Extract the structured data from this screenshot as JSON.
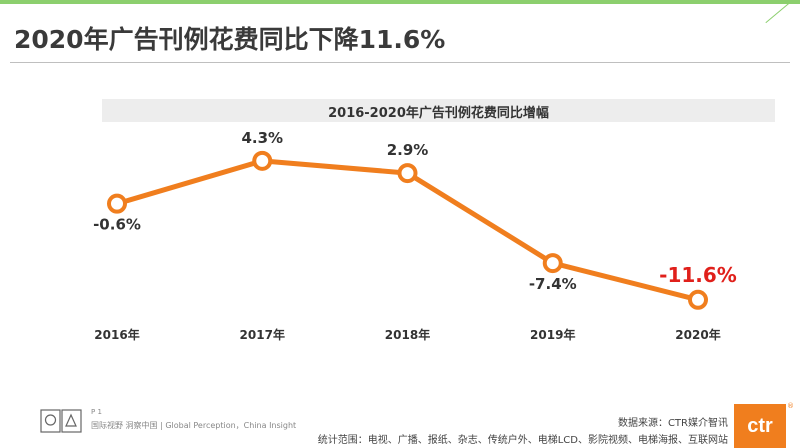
{
  "header": {
    "title": "2020年广告刊例花费同比下降11.6%"
  },
  "chart_data": {
    "type": "line",
    "title": "2016-2020年广告刊例花费同比增幅",
    "categories": [
      "2016年",
      "2017年",
      "2018年",
      "2019年",
      "2020年"
    ],
    "series": [
      {
        "name": "广告刊例花费同比增幅",
        "values": [
          -0.6,
          4.3,
          2.9,
          -7.4,
          -11.6
        ]
      }
    ],
    "data_labels": [
      "-0.6%",
      "4.3%",
      "2.9%",
      "-7.4%",
      "-11.6%"
    ],
    "highlight_index": 4,
    "ylim": [
      -13,
      6
    ],
    "xlabel": "",
    "ylabel": "",
    "grid": false,
    "line_color": "#f07e1e",
    "highlight_color": "#e0201b"
  },
  "footer": {
    "page_number": "P 1",
    "tagline": "国际视野  洞察中国 | Global Perception，China Insight",
    "source": "数据来源：CTR媒介智讯",
    "scope": "统计范围：电视、广播、报纸、杂志、传统户外、电梯LCD、影院视频、电梯海报、互联网站",
    "logo_text": "ctr",
    "logo_mark": "®"
  },
  "colors": {
    "accent": "#f07e1e",
    "highlight": "#e0201b",
    "top_bar": "#8ccf6e"
  }
}
